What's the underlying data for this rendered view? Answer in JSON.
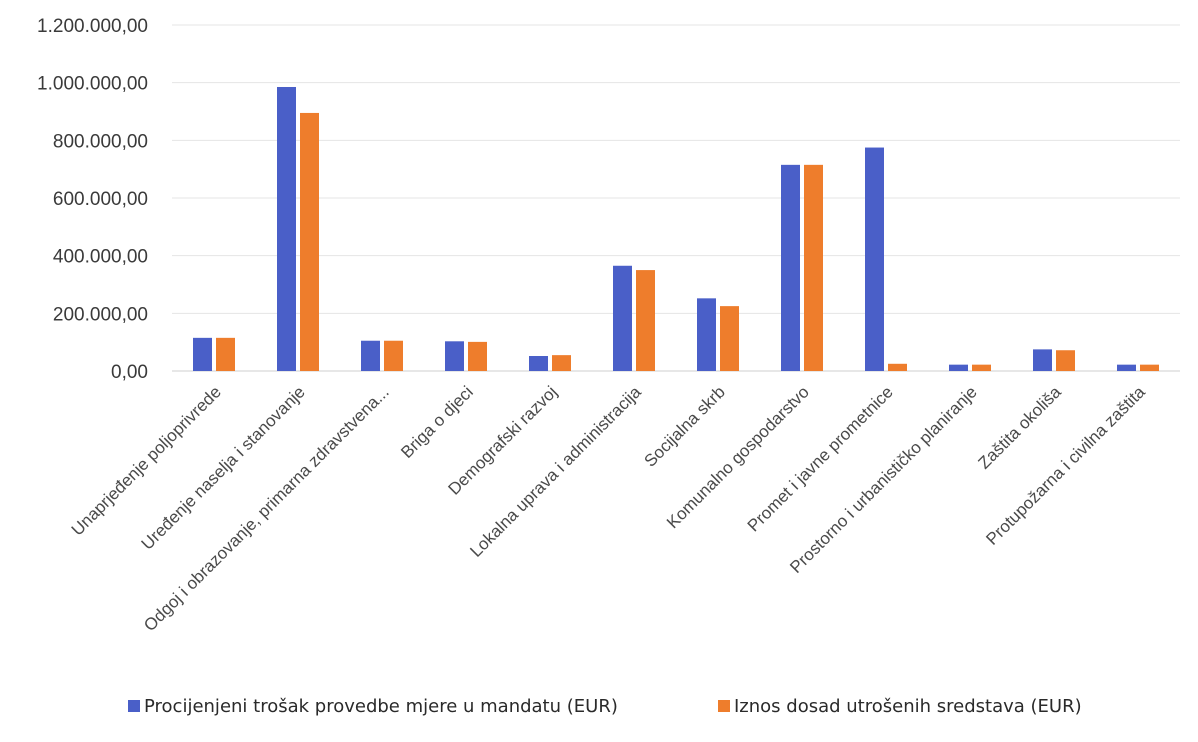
{
  "chart_data": {
    "type": "bar",
    "categories": [
      "Unaprjeđenje poljoprivrede",
      "Uređenje naselja i stanovanje",
      "Odgoj i obrazovanje, primarna zdravstvena...",
      "Briga o djeci",
      "Demografski razvoj",
      "Lokalna uprava i administracija",
      "Socijalna skrb",
      "Komunalno gospodarstvo",
      "Promet i javne prometnice",
      "Prostorno i urbanističko planiranje",
      "Zaštita okoliša",
      "Protupožarna i civilna zaštita"
    ],
    "series": [
      {
        "name": "Procijenjeni trošak provedbe mjere u mandatu (EUR)",
        "color": "#4a5fc8",
        "values": [
          115000,
          985000,
          105000,
          103000,
          52000,
          365000,
          252000,
          715000,
          775000,
          22000,
          75000,
          22000
        ]
      },
      {
        "name": "Iznos dosad utrošenih sredstava (EUR)",
        "color": "#ee7d2c",
        "values": [
          115000,
          895000,
          105000,
          101000,
          55000,
          350000,
          225000,
          715000,
          25000,
          22000,
          72000,
          22000
        ]
      }
    ],
    "yticks": [
      "0,00",
      "200.000,00",
      "400.000,00",
      "600.000,00",
      "800.000,00",
      "1.000.000,00",
      "1.200.000,00"
    ],
    "ylim": [
      0,
      1200000
    ],
    "title": "",
    "xlabel": "",
    "ylabel": "",
    "grid": true,
    "legend_position": "bottom"
  }
}
